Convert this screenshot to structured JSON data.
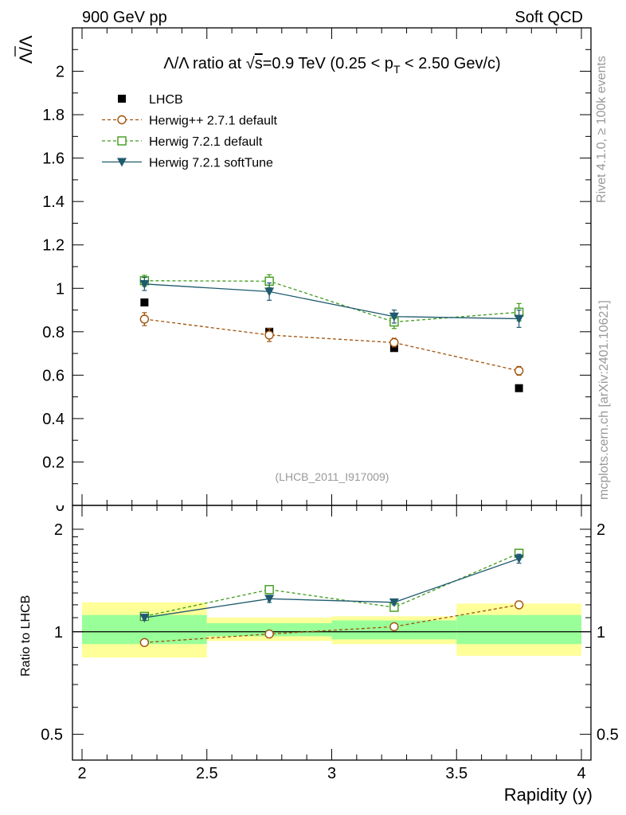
{
  "header": {
    "left": "900 GeV pp",
    "right": "Soft QCD"
  },
  "side_labels": {
    "version": "Rivet 4.1.0, ≥ 100k events",
    "source": "mcplots.cern.ch [arXiv:2401.10621]"
  },
  "analysis_id": "(LHCB_2011_I917009)",
  "title": {
    "prefix": "Λ/Λ ratio at √",
    "radicand": "s",
    "mid": "=0.9 TeV (0.25 < p",
    "sub": "T",
    "suffix": " < 2.50 Gev/c)"
  },
  "chart_data": [
    {
      "type": "line",
      "panel": "main",
      "ylabel": "Λ/Λ",
      "xlim": [
        2,
        4
      ],
      "ylim": [
        0,
        2.2
      ],
      "yticks": [
        0.2,
        0.4,
        0.6,
        0.8,
        1,
        1.2,
        1.4,
        1.6,
        1.8,
        2
      ],
      "ytick_labels": [
        "0.2",
        "0.4",
        "0.6",
        "0.8",
        "1",
        "1.2",
        "1.4",
        "1.6",
        "1.8",
        "2"
      ],
      "x": [
        2.25,
        2.75,
        3.25,
        3.75
      ],
      "legend_position": "top-left",
      "series": [
        {
          "name": "LHCB",
          "color": "#000000",
          "marker": "filled-square",
          "dash": "none",
          "values": [
            0.935,
            0.8,
            0.725,
            0.54
          ],
          "errors": [
            0.01,
            0.01,
            0.01,
            0.01
          ]
        },
        {
          "name": "Herwig++ 2.7.1 default",
          "color": "#a0520a",
          "marker": "open-circle",
          "dash": "dashed",
          "values": [
            0.858,
            0.785,
            0.75,
            0.62
          ],
          "errors": [
            0.03,
            0.03,
            0.02,
            0.02
          ]
        },
        {
          "name": "Herwig 7.2.1 default",
          "color": "#3e9b1a",
          "marker": "open-square",
          "dash": "dashed",
          "values": [
            1.035,
            1.033,
            0.845,
            0.89
          ],
          "errors": [
            0.025,
            0.03,
            0.03,
            0.04
          ]
        },
        {
          "name": "Herwig 7.2.1 softTune",
          "color": "#1f5a6e",
          "marker": "filled-triangle-down",
          "dash": "none",
          "values": [
            1.02,
            0.985,
            0.87,
            0.86
          ],
          "errors": [
            0.03,
            0.04,
            0.03,
            0.04
          ]
        }
      ]
    },
    {
      "type": "line",
      "panel": "ratio",
      "ylabel": "Ratio to LHCB",
      "xlabel": "Rapidity (y)",
      "scale": "log",
      "xlim": [
        2,
        4
      ],
      "ylim": [
        0.42,
        2.35
      ],
      "xticks": [
        2,
        2.5,
        3,
        3.5,
        4
      ],
      "xtick_labels": [
        "2",
        "2.5",
        "3",
        "3.5",
        "4"
      ],
      "yticks": [
        0.5,
        1,
        2
      ],
      "ytick_labels": [
        "0.5",
        "1",
        "2"
      ],
      "x": [
        2.25,
        2.75,
        3.25,
        3.75
      ],
      "bands": {
        "edges": [
          2,
          2.5,
          3,
          3.5,
          4
        ],
        "inner_color": "#99ff99",
        "outer_color": "#ffff99",
        "inner": [
          [
            0.92,
            1.12
          ],
          [
            0.97,
            1.06
          ],
          [
            0.95,
            1.08
          ],
          [
            0.92,
            1.12
          ]
        ],
        "outer": [
          [
            0.84,
            1.22
          ],
          [
            0.94,
            1.1
          ],
          [
            0.92,
            1.11
          ],
          [
            0.85,
            1.21
          ]
        ]
      },
      "series": [
        {
          "name": "Herwig++ 2.7.1 default",
          "color": "#a0520a",
          "marker": "open-circle",
          "dash": "dashed",
          "values": [
            0.93,
            0.985,
            1.035,
            1.2
          ],
          "errors": [
            0.02,
            0.02,
            0.02,
            0.03
          ]
        },
        {
          "name": "Herwig 7.2.1 default",
          "color": "#3e9b1a",
          "marker": "open-square",
          "dash": "dashed",
          "values": [
            1.11,
            1.33,
            1.18,
            1.7
          ],
          "errors": [
            0.02,
            0.02,
            0.02,
            0.04
          ]
        },
        {
          "name": "Herwig 7.2.1 softTune",
          "color": "#1f5a6e",
          "marker": "filled-triangle-down",
          "dash": "none",
          "values": [
            1.1,
            1.25,
            1.22,
            1.64
          ],
          "errors": [
            0.02,
            0.03,
            0.02,
            0.05
          ]
        }
      ]
    }
  ]
}
